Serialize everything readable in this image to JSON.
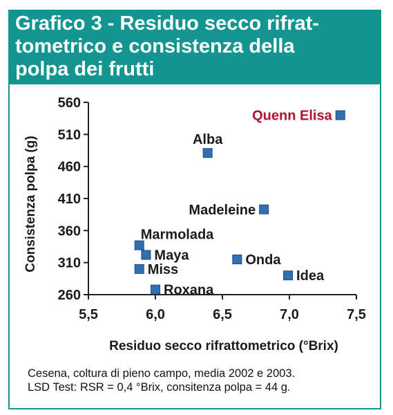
{
  "header": {
    "title": "Grafico 3 - Residuo secco rifrat-\ntometrico e consistenza della\npolpa dei frutti"
  },
  "colors": {
    "band": "#15958f",
    "marker": "#2f6fb2",
    "highlight_label": "#b3122e"
  },
  "chart_data": {
    "type": "scatter",
    "title": "Grafico 3 - Residuo secco rifrattometrico e consistenza della polpa dei frutti",
    "xlabel": "Residuo secco rifrattometrico (°Brix)",
    "ylabel": "Consistenza polpa (g)",
    "xlim": [
      5.5,
      7.5
    ],
    "ylim": [
      260,
      560
    ],
    "x_ticks": [
      5.5,
      6.0,
      6.5,
      7.0,
      7.5
    ],
    "x_tick_labels": [
      "5,5",
      "6,0",
      "6,5",
      "7,0",
      "7,5"
    ],
    "y_ticks": [
      260,
      310,
      360,
      410,
      460,
      510,
      560
    ],
    "y_tick_labels": [
      "260",
      "310",
      "360",
      "410",
      "460",
      "510",
      "560"
    ],
    "grid": false,
    "points": [
      {
        "label": "Quenn Elisa",
        "x": 7.38,
        "y": 540,
        "label_pos": "left",
        "highlight": true
      },
      {
        "label": "Alba",
        "x": 6.39,
        "y": 481,
        "label_pos": "above"
      },
      {
        "label": "Madeleine",
        "x": 6.81,
        "y": 393,
        "label_pos": "left"
      },
      {
        "label": "Marmolada",
        "x": 5.88,
        "y": 337,
        "label_pos": "above-right"
      },
      {
        "label": "Maya",
        "x": 5.93,
        "y": 322,
        "label_pos": "right"
      },
      {
        "label": "Onda",
        "x": 6.61,
        "y": 315,
        "label_pos": "right"
      },
      {
        "label": "Miss",
        "x": 5.88,
        "y": 300,
        "label_pos": "right"
      },
      {
        "label": "Idea",
        "x": 6.99,
        "y": 290,
        "label_pos": "right"
      },
      {
        "label": "Roxana",
        "x": 6.0,
        "y": 268,
        "label_pos": "right"
      }
    ]
  },
  "caption": {
    "line1": "Cesena, coltura di pieno campo, media 2002 e 2003.",
    "line2": "LSD Test: RSR = 0,4 °Brix, consitenza polpa = 44 g."
  }
}
